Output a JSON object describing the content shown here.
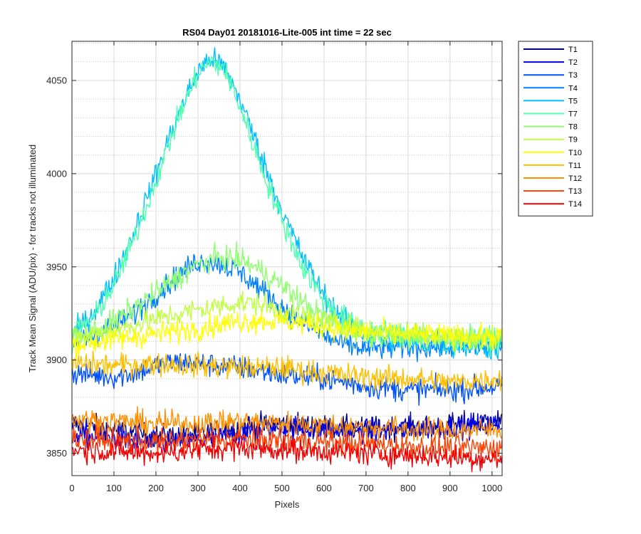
{
  "chart_data": {
    "type": "line",
    "title": "RS04 Day01 20181016-Lite-005 int time = 22 sec",
    "xlabel": "Pixels",
    "ylabel": "Track Mean Signal (ADU/pix) - for tracks not illuminated",
    "xlim": [
      0,
      1024
    ],
    "ylim": [
      3838,
      4071
    ],
    "xticks": [
      0,
      100,
      200,
      300,
      400,
      500,
      600,
      700,
      800,
      900,
      1000
    ],
    "yticks": [
      3850,
      3900,
      3950,
      4000,
      4050
    ],
    "grid": "major-and-minor",
    "legend_position": "outside-right",
    "series": [
      {
        "name": "T1",
        "color": "#00008F",
        "x": [
          0,
          100,
          200,
          300,
          400,
          500,
          600,
          700,
          800,
          900,
          1024
        ],
        "y": [
          3866,
          3863,
          3859,
          3860,
          3864,
          3866,
          3864,
          3863,
          3864,
          3865,
          3868
        ]
      },
      {
        "name": "T2",
        "color": "#0000EF",
        "x": [
          0,
          100,
          200,
          300,
          400,
          500,
          600,
          700,
          800,
          900,
          1024
        ],
        "y": [
          3860,
          3858,
          3855,
          3857,
          3861,
          3864,
          3863,
          3862,
          3863,
          3864,
          3866
        ]
      },
      {
        "name": "T3",
        "color": "#0050FF",
        "x": [
          0,
          100,
          150,
          200,
          250,
          300,
          350,
          400,
          450,
          500,
          550,
          600,
          650,
          700,
          800,
          900,
          1024
        ],
        "y": [
          3893,
          3891,
          3893,
          3897,
          3899,
          3898,
          3897,
          3896,
          3894,
          3892,
          3891,
          3890,
          3888,
          3886,
          3884,
          3884,
          3886
        ]
      },
      {
        "name": "T4",
        "color": "#0080FF",
        "x": [
          0,
          50,
          100,
          150,
          200,
          250,
          300,
          350,
          400,
          450,
          500,
          550,
          600,
          650,
          700,
          800,
          900,
          1024
        ],
        "y": [
          3908,
          3913,
          3918,
          3925,
          3935,
          3945,
          3953,
          3952,
          3947,
          3938,
          3928,
          3920,
          3913,
          3908,
          3906,
          3907,
          3907,
          3908
        ]
      },
      {
        "name": "T5",
        "color": "#00BFFF",
        "x": [
          0,
          50,
          100,
          150,
          200,
          250,
          300,
          330,
          360,
          400,
          450,
          500,
          550,
          600,
          650,
          700,
          800,
          900,
          1024
        ],
        "y": [
          3913,
          3925,
          3944,
          3970,
          4000,
          4030,
          4055,
          4062,
          4058,
          4040,
          4010,
          3980,
          3955,
          3935,
          3920,
          3912,
          3910,
          3908,
          3906
        ]
      },
      {
        "name": "T7",
        "color": "#50FFAF",
        "x": [
          0,
          50,
          100,
          150,
          200,
          250,
          300,
          330,
          360,
          400,
          450,
          500,
          550,
          600,
          650,
          700,
          800,
          900,
          1024
        ],
        "y": [
          3915,
          3922,
          3940,
          3966,
          3996,
          4028,
          4054,
          4060,
          4057,
          4036,
          4004,
          3975,
          3950,
          3932,
          3922,
          3916,
          3914,
          3912,
          3911
        ]
      },
      {
        "name": "T8",
        "color": "#8FFF70",
        "x": [
          0,
          50,
          100,
          150,
          200,
          250,
          300,
          350,
          400,
          450,
          500,
          550,
          600,
          650,
          700,
          800,
          900,
          1024
        ],
        "y": [
          3910,
          3915,
          3921,
          3928,
          3936,
          3944,
          3951,
          3955,
          3954,
          3948,
          3940,
          3931,
          3923,
          3918,
          3914,
          3912,
          3911,
          3911
        ]
      },
      {
        "name": "T9",
        "color": "#BFFF40",
        "x": [
          0,
          100,
          200,
          300,
          400,
          450,
          500,
          600,
          700,
          800,
          900,
          1024
        ],
        "y": [
          3912,
          3916,
          3922,
          3927,
          3931,
          3930,
          3926,
          3920,
          3916,
          3914,
          3913,
          3913
        ]
      },
      {
        "name": "T10",
        "color": "#FFFF00",
        "x": [
          0,
          100,
          200,
          300,
          400,
          500,
          600,
          700,
          800,
          900,
          1024
        ],
        "y": [
          3908,
          3911,
          3914,
          3917,
          3921,
          3921,
          3918,
          3915,
          3914,
          3913,
          3912
        ]
      },
      {
        "name": "T11",
        "color": "#FFBF00",
        "x": [
          0,
          100,
          200,
          300,
          400,
          500,
          600,
          700,
          800,
          900,
          1024
        ],
        "y": [
          3898,
          3897,
          3898,
          3897,
          3896,
          3896,
          3893,
          3891,
          3890,
          3888,
          3890
        ]
      },
      {
        "name": "T12",
        "color": "#FF8F00",
        "x": [
          0,
          100,
          200,
          300,
          400,
          500,
          600,
          700,
          800,
          900,
          1024
        ],
        "y": [
          3868,
          3867,
          3866,
          3866,
          3867,
          3866,
          3865,
          3864,
          3863,
          3862,
          3863
        ]
      },
      {
        "name": "T13",
        "color": "#FF4000",
        "x": [
          0,
          100,
          200,
          300,
          400,
          500,
          600,
          700,
          800,
          900,
          1024
        ],
        "y": [
          3858,
          3857,
          3856,
          3857,
          3858,
          3857,
          3856,
          3855,
          3854,
          3853,
          3853
        ]
      },
      {
        "name": "T14",
        "color": "#F00000",
        "x": [
          0,
          100,
          200,
          300,
          400,
          500,
          600,
          700,
          800,
          900,
          1024
        ],
        "y": [
          3852,
          3851,
          3850,
          3852,
          3853,
          3852,
          3851,
          3850,
          3849,
          3848,
          3847
        ]
      }
    ]
  }
}
